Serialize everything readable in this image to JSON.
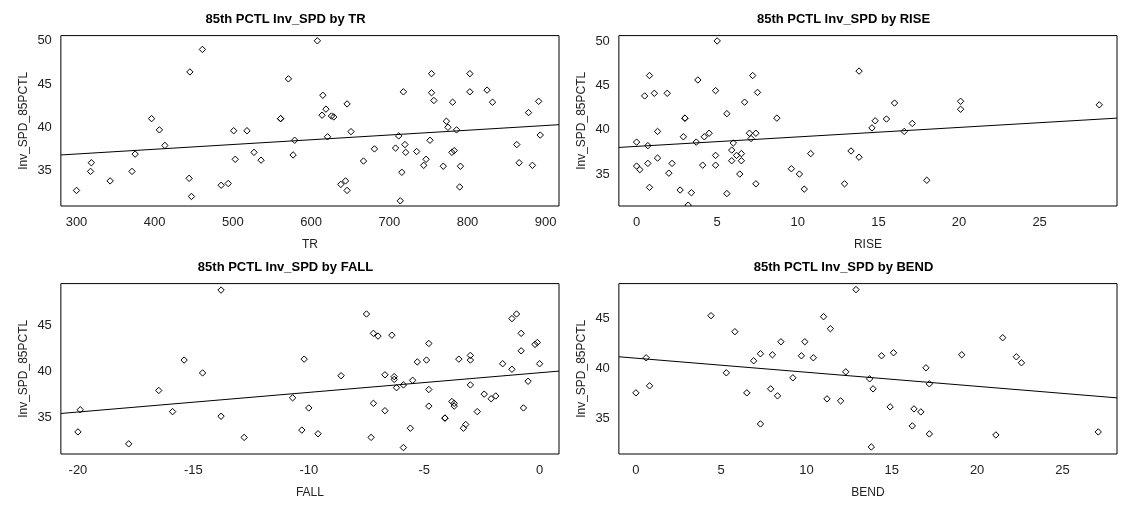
{
  "chart_data": [
    {
      "type": "scatter",
      "title": "85th PCTL Inv_SPD by TR",
      "xlabel": "TR",
      "ylabel": "Inv_SPD_85PCTL",
      "xlim": [
        280,
        917
      ],
      "ylim": [
        30.9,
        50.6
      ],
      "xticks": [
        300,
        400,
        500,
        600,
        700,
        800,
        900
      ],
      "yticks": [
        35,
        40,
        45,
        50
      ],
      "series": [
        {
          "type": "scatter",
          "marker": "diamond",
          "color": "#000000",
          "x": [
            300,
            319,
            318,
            343,
            371,
            375,
            396,
            406,
            413,
            444,
            445,
            447,
            461,
            485,
            494,
            501,
            503,
            518,
            527,
            536,
            561,
            561,
            571,
            579,
            577,
            608,
            615,
            614,
            619,
            621,
            626,
            629,
            638,
            644,
            646,
            646,
            651,
            667,
            681,
            708,
            712,
            714,
            716,
            718,
            720,
            721,
            735,
            744,
            747,
            752,
            754,
            754,
            757,
            769,
            773,
            775,
            780,
            783,
            781,
            786,
            791,
            790,
            803,
            803,
            825,
            832,
            863,
            866,
            878,
            883,
            891,
            893
          ],
          "values": [
            32.7,
            35.9,
            34.9,
            33.8,
            34.9,
            36.9,
            41.0,
            39.7,
            37.9,
            34.1,
            46.4,
            32.0,
            49.0,
            33.3,
            33.5,
            39.6,
            36.3,
            39.6,
            37.1,
            36.2,
            41.0,
            41.0,
            45.6,
            38.5,
            36.8,
            50.0,
            43.7,
            41.4,
            42.1,
            38.9,
            41.3,
            41.2,
            33.4,
            33.8,
            32.7,
            42.7,
            39.5,
            36.1,
            37.5,
            37.6,
            39.0,
            31.5,
            34.8,
            44.1,
            38.0,
            37.1,
            37.2,
            35.6,
            36.3,
            38.5,
            44.0,
            46.2,
            43.1,
            35.5,
            40.7,
            40.0,
            37.1,
            37.3,
            42.9,
            39.7,
            35.5,
            33.1,
            46.2,
            44.1,
            44.3,
            42.9,
            38.0,
            35.9,
            41.7,
            35.6,
            43.0,
            39.1
          ]
        },
        {
          "type": "line",
          "marker": "none",
          "color": "#000000",
          "x": [
            280,
            917
          ],
          "values": [
            36.8,
            40.3
          ]
        }
      ]
    },
    {
      "type": "scatter",
      "title": "85th PCTL Inv_SPD by RISE",
      "xlabel": "RISE",
      "ylabel": "Inv_SPD_85PCTL",
      "xlim": [
        -1.1,
        29.8
      ],
      "ylim": [
        31.4,
        50.6
      ],
      "xticks": [
        0,
        5,
        10,
        15,
        20,
        25
      ],
      "yticks": [
        35,
        40,
        45,
        50
      ],
      "series": [
        {
          "type": "scatter",
          "marker": "diamond",
          "color": "#000000",
          "x": [
            0,
            0,
            0.2,
            0.5,
            0.7,
            0.7,
            0.8,
            0.8,
            1.1,
            1.3,
            1.3,
            1.9,
            2.0,
            2.2,
            2.7,
            2.9,
            3.0,
            3.0,
            3.2,
            3.4,
            3.7,
            3.8,
            4.1,
            4.2,
            4.5,
            4.9,
            4.9,
            4.9,
            5.0,
            5.6,
            5.6,
            5.9,
            6.0,
            5.9,
            6.2,
            6.4,
            6.5,
            6.5,
            6.7,
            7.0,
            7.1,
            7.2,
            7.4,
            7.4,
            7.5,
            8.7,
            9.6,
            10.1,
            10.4,
            10.8,
            12.9,
            13.3,
            13.8,
            13.8,
            14.6,
            14.8,
            15.5,
            16.0,
            16.6,
            17.1,
            18.0,
            20.1,
            20.1,
            28.7
          ],
          "values": [
            38.6,
            35.9,
            35.5,
            43.8,
            38.2,
            36.2,
            46.1,
            33.5,
            44.1,
            36.8,
            39.8,
            44.1,
            35.1,
            36.2,
            33.2,
            39.2,
            41.3,
            41.3,
            31.5,
            32.9,
            38.6,
            45.6,
            36.0,
            39.2,
            39.6,
            37.1,
            36.0,
            44.4,
            50.0,
            32.8,
            41.8,
            37.7,
            38.5,
            36.5,
            37.1,
            35.0,
            37.3,
            36.5,
            43.1,
            39.6,
            39.0,
            46.1,
            39.6,
            33.9,
            44.2,
            41.3,
            35.6,
            35.0,
            33.3,
            37.3,
            33.9,
            37.6,
            46.6,
            36.9,
            40.2,
            41.0,
            41.2,
            43.0,
            39.8,
            40.7,
            34.3,
            43.2,
            42.3,
            42.8
          ]
        },
        {
          "type": "line",
          "marker": "none",
          "color": "#000000",
          "x": [
            -1.1,
            29.8
          ],
          "values": [
            38.0,
            41.3
          ]
        }
      ]
    },
    {
      "type": "scatter",
      "title": "85th PCTL Inv_SPD by FALL",
      "xlabel": "FALL",
      "ylabel": "Inv_SPD_85PCTL",
      "xlim": [
        -20.74,
        0.84
      ],
      "ylim": [
        31.0,
        49.5
      ],
      "xticks": [
        -20,
        -15,
        -10,
        -5,
        0
      ],
      "yticks": [
        35,
        40,
        45
      ],
      "series": [
        {
          "type": "scatter",
          "marker": "diamond",
          "color": "#000000",
          "x": [
            -19.9,
            -20.0,
            -17.8,
            -16.5,
            -15.9,
            -15.4,
            -14.6,
            -13.8,
            -13.8,
            -12.8,
            -10.7,
            -10.3,
            -10.2,
            -10.0,
            -9.6,
            -8.6,
            -7.5,
            -7.3,
            -7.2,
            -7.2,
            -7.0,
            -6.7,
            -6.7,
            -6.4,
            -6.3,
            -6.3,
            -6.2,
            -5.9,
            -5.9,
            -5.6,
            -5.5,
            -5.3,
            -4.9,
            -4.8,
            -4.8,
            -4.8,
            -4.1,
            -4.1,
            -3.8,
            -3.7,
            -3.7,
            -3.5,
            -3.3,
            -3.2,
            -3.0,
            -3.0,
            -3.0,
            -2.7,
            -2.4,
            -2.1,
            -1.9,
            -1.6,
            -1.2,
            -1.2,
            -1.0,
            -0.8,
            -0.8,
            -0.7,
            -0.5,
            -0.2,
            -0.1,
            0.0
          ],
          "values": [
            35.8,
            33.4,
            32.1,
            37.9,
            35.6,
            41.2,
            39.8,
            48.8,
            35.1,
            32.8,
            37.1,
            33.6,
            41.3,
            36.0,
            33.2,
            39.5,
            46.2,
            32.8,
            36.5,
            44.1,
            43.8,
            39.6,
            35.7,
            43.9,
            39.4,
            39.1,
            38.2,
            38.5,
            31.7,
            33.8,
            39.0,
            41.0,
            41.2,
            43.0,
            38.0,
            36.2,
            34.9,
            34.9,
            36.7,
            36.2,
            36.5,
            41.3,
            33.8,
            34.2,
            38.5,
            41.7,
            41.2,
            35.6,
            37.5,
            37.0,
            37.3,
            40.8,
            40.2,
            45.7,
            46.2,
            44.1,
            42.2,
            36.0,
            38.9,
            42.9,
            43.1,
            40.8
          ]
        },
        {
          "type": "line",
          "marker": "none",
          "color": "#000000",
          "x": [
            -20.74,
            0.84
          ],
          "values": [
            35.4,
            40.0
          ]
        }
      ]
    },
    {
      "type": "scatter",
      "title": "85th PCTL Inv_SPD by BEND",
      "xlabel": "BEND",
      "ylabel": "Inv_SPD_85PCTL",
      "xlim": [
        -1,
        28.2
      ],
      "ylim": [
        31.5,
        48.5
      ],
      "xticks": [
        0,
        5,
        10,
        15,
        20,
        25
      ],
      "yticks": [
        35,
        40,
        45
      ],
      "series": [
        {
          "type": "scatter",
          "marker": "diamond",
          "color": "#000000",
          "x": [
            0,
            0.6,
            0.8,
            4.4,
            5.3,
            5.8,
            6.5,
            6.9,
            7.3,
            7.3,
            7.9,
            8.0,
            8.3,
            8.5,
            9.2,
            9.7,
            9.9,
            10.4,
            11.0,
            11.2,
            11.4,
            12.0,
            12.3,
            12.9,
            13.7,
            13.8,
            13.9,
            14.4,
            14.9,
            15.1,
            16.3,
            16.2,
            16.7,
            17.0,
            17.2,
            17.2,
            19.1,
            21.1,
            21.5,
            22.3,
            22.6,
            27.1
          ],
          "values": [
            37.6,
            41.1,
            38.3,
            45.3,
            39.6,
            43.7,
            37.6,
            40.8,
            41.5,
            34.5,
            38.0,
            41.4,
            37.3,
            42.7,
            39.1,
            41.3,
            42.7,
            41.1,
            45.2,
            37.0,
            44.0,
            36.8,
            39.7,
            47.9,
            39.0,
            32.2,
            38.0,
            41.3,
            36.2,
            41.6,
            36.0,
            34.3,
            35.7,
            40.1,
            33.5,
            38.5,
            41.4,
            33.4,
            43.1,
            41.2,
            40.6,
            33.7
          ]
        },
        {
          "type": "line",
          "marker": "none",
          "color": "#000000",
          "x": [
            -1,
            28.2
          ],
          "values": [
            41.2,
            37.1
          ]
        }
      ]
    }
  ]
}
